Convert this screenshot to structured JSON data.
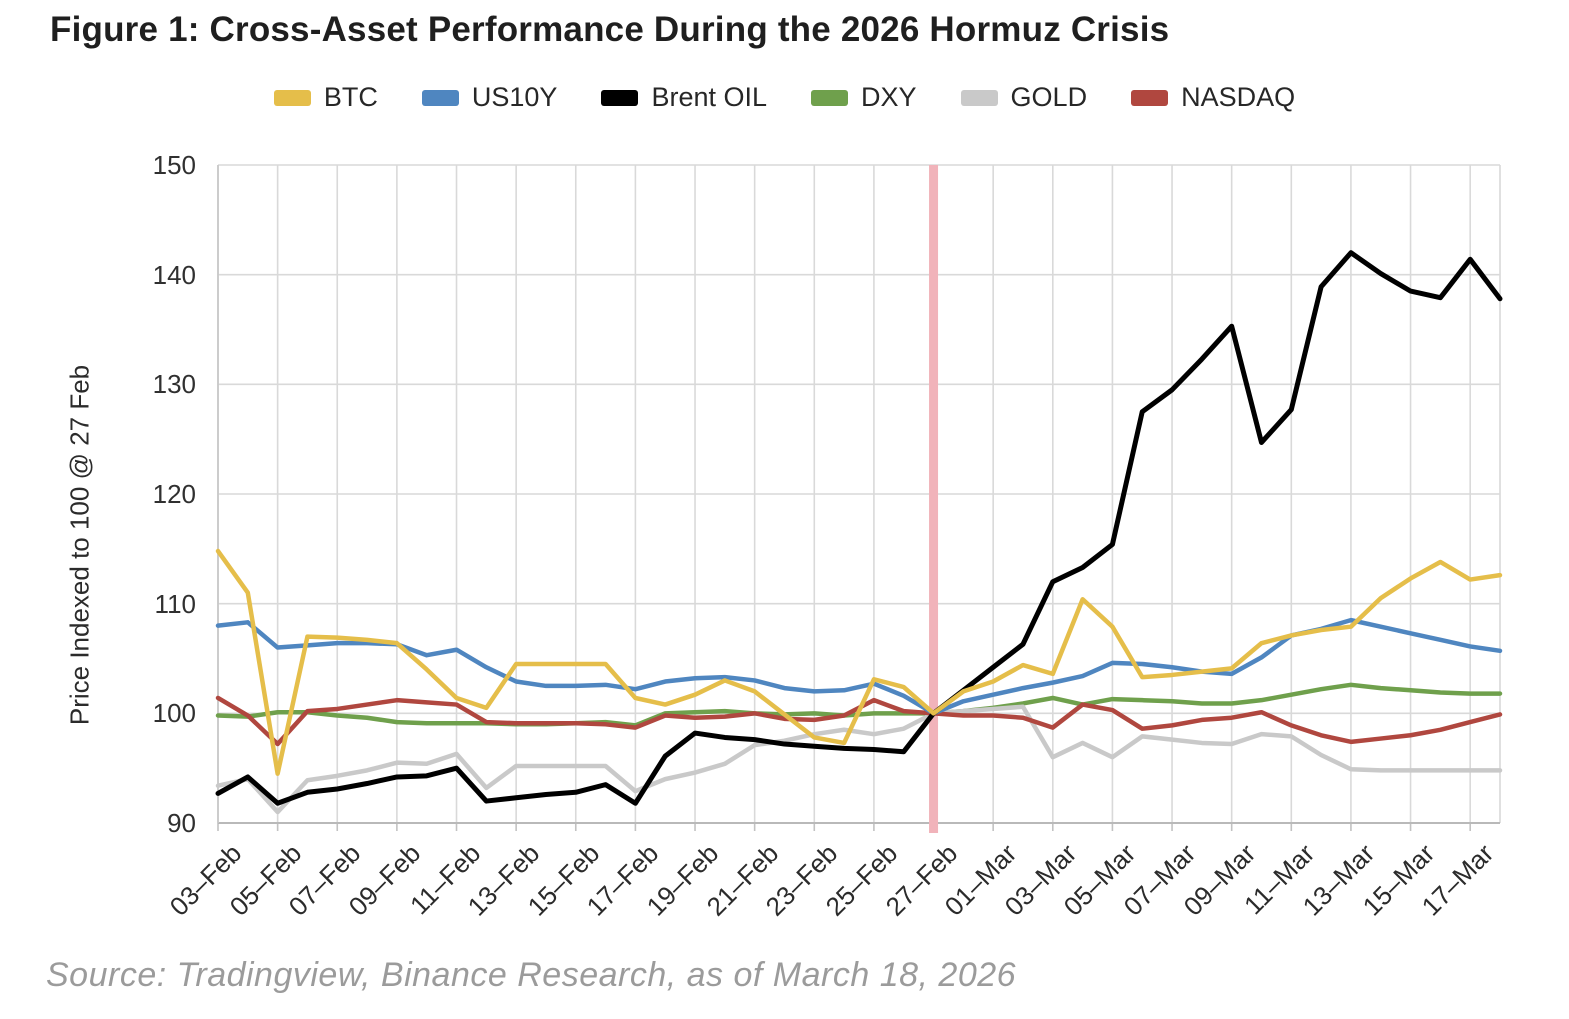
{
  "title": "Figure 1: Cross-Asset Performance During the 2026 Hormuz Crisis",
  "source": "Source: Tradingview, Binance Research, as of March 18, 2026",
  "chart_data": {
    "type": "line",
    "title": "Figure 1: Cross-Asset Performance During the 2026 Hormuz Crisis",
    "xlabel": "",
    "ylabel": "Price Indexed to 100 @ 27 Feb",
    "ylim": [
      90,
      150
    ],
    "yticks": [
      150,
      140,
      130,
      120,
      110,
      100,
      90
    ],
    "grid": true,
    "legend_position": "top",
    "event_band": {
      "x": "27–Feb",
      "index": 24,
      "color": "#F1B3BA"
    },
    "x_tick_labels": [
      "03–Feb",
      "05–Feb",
      "07–Feb",
      "09–Feb",
      "11–Feb",
      "13–Feb",
      "15–Feb",
      "17–Feb",
      "19–Feb",
      "21–Feb",
      "23–Feb",
      "25–Feb",
      "27–Feb",
      "01–Mar",
      "03–Mar",
      "05–Mar",
      "07–Mar",
      "09–Mar",
      "11–Mar",
      "13–Mar",
      "15–Mar",
      "17–Mar"
    ],
    "x": [
      "03–Feb",
      "04–Feb",
      "05–Feb",
      "06–Feb",
      "07–Feb",
      "08–Feb",
      "09–Feb",
      "10–Feb",
      "11–Feb",
      "12–Feb",
      "13–Feb",
      "14–Feb",
      "15–Feb",
      "16–Feb",
      "17–Feb",
      "18–Feb",
      "19–Feb",
      "20–Feb",
      "21–Feb",
      "22–Feb",
      "23–Feb",
      "24–Feb",
      "25–Feb",
      "26–Feb",
      "27–Feb",
      "28–Feb",
      "01–Mar",
      "02–Mar",
      "03–Mar",
      "04–Mar",
      "05–Mar",
      "06–Mar",
      "07–Mar",
      "08–Mar",
      "09–Mar",
      "10–Mar",
      "11–Mar",
      "12–Mar",
      "13–Mar",
      "14–Mar",
      "15–Mar",
      "16–Mar",
      "17–Mar",
      "18–Mar"
    ],
    "series": [
      {
        "name": "BTC",
        "color": "#E5BE4A",
        "values": [
          114.8,
          111,
          94.5,
          107,
          106.9,
          106.7,
          106.4,
          104,
          101.4,
          100.5,
          104.5,
          104.5,
          104.5,
          104.5,
          101.4,
          100.8,
          101.7,
          103,
          102,
          99.9,
          97.8,
          97.3,
          103.1,
          102.4,
          100,
          102,
          102.9,
          104.4,
          103.6,
          110.4,
          107.9,
          103.3,
          103.5,
          103.8,
          104.1,
          106.4,
          107.1,
          107.6,
          107.9,
          110.5,
          112.3,
          113.8,
          112.2,
          112.6
        ]
      },
      {
        "name": "US10Y",
        "color": "#4F86C0",
        "values": [
          108,
          108.3,
          106,
          106.2,
          106.4,
          106.4,
          106.3,
          105.3,
          105.8,
          104.2,
          102.9,
          102.5,
          102.5,
          102.6,
          102.2,
          102.9,
          103.2,
          103.3,
          103,
          102.3,
          102,
          102.1,
          102.7,
          101.6,
          100,
          101.1,
          101.7,
          102.3,
          102.8,
          103.4,
          104.6,
          104.5,
          104.2,
          103.8,
          103.6,
          105.1,
          107.1,
          107.7,
          108.5,
          107.9,
          107.3,
          106.7,
          106.1,
          105.7
        ]
      },
      {
        "name": "Brent OIL",
        "color": "#000000",
        "values": [
          92.7,
          94.2,
          91.8,
          92.8,
          93.1,
          93.6,
          94.2,
          94.3,
          95,
          92,
          92.3,
          92.6,
          92.8,
          93.5,
          91.8,
          96.1,
          98.2,
          97.8,
          97.6,
          97.2,
          97,
          96.8,
          96.7,
          96.5,
          100,
          102.1,
          104.2,
          106.3,
          112,
          113.3,
          115.4,
          127.5,
          129.5,
          132.3,
          135.3,
          124.7,
          127.7,
          138.9,
          142,
          140.1,
          138.5,
          137.9,
          141.4,
          137.8
        ]
      },
      {
        "name": "DXY",
        "color": "#6FA04C",
        "values": [
          99.8,
          99.7,
          100.1,
          100.1,
          99.8,
          99.6,
          99.2,
          99.1,
          99.1,
          99.1,
          99,
          99,
          99.1,
          99.2,
          98.9,
          100,
          100.1,
          100.2,
          100,
          99.9,
          100,
          99.8,
          100,
          100,
          100,
          100.2,
          100.5,
          100.9,
          101.4,
          100.8,
          101.3,
          101.2,
          101.1,
          100.9,
          100.9,
          101.2,
          101.7,
          102.2,
          102.6,
          102.3,
          102.1,
          101.9,
          101.8,
          101.8
        ]
      },
      {
        "name": "GOLD",
        "color": "#C9C9C9",
        "values": [
          93.4,
          94,
          91,
          93.9,
          94.3,
          94.8,
          95.5,
          95.4,
          96.3,
          93.2,
          95.2,
          95.2,
          95.2,
          95.2,
          92.9,
          94,
          94.6,
          95.4,
          97.1,
          97.5,
          98.1,
          98.5,
          98.1,
          98.6,
          100,
          100.2,
          100.4,
          100.6,
          96,
          97.3,
          96,
          97.9,
          97.6,
          97.3,
          97.2,
          98.1,
          97.9,
          96.2,
          94.9,
          94.8,
          94.8,
          94.8,
          94.8,
          94.8
        ]
      },
      {
        "name": "NASDAQ",
        "color": "#B0473F",
        "values": [
          101.4,
          99.8,
          97.2,
          100.2,
          100.4,
          100.8,
          101.2,
          101,
          100.8,
          99.2,
          99.1,
          99.1,
          99.1,
          99,
          98.7,
          99.8,
          99.6,
          99.7,
          100,
          99.5,
          99.4,
          99.8,
          101.2,
          100.2,
          100,
          99.8,
          99.8,
          99.6,
          98.7,
          100.8,
          100.3,
          98.6,
          98.9,
          99.4,
          99.6,
          100.1,
          98.9,
          98,
          97.4,
          97.7,
          98,
          98.5,
          99.2,
          99.9
        ]
      }
    ]
  }
}
